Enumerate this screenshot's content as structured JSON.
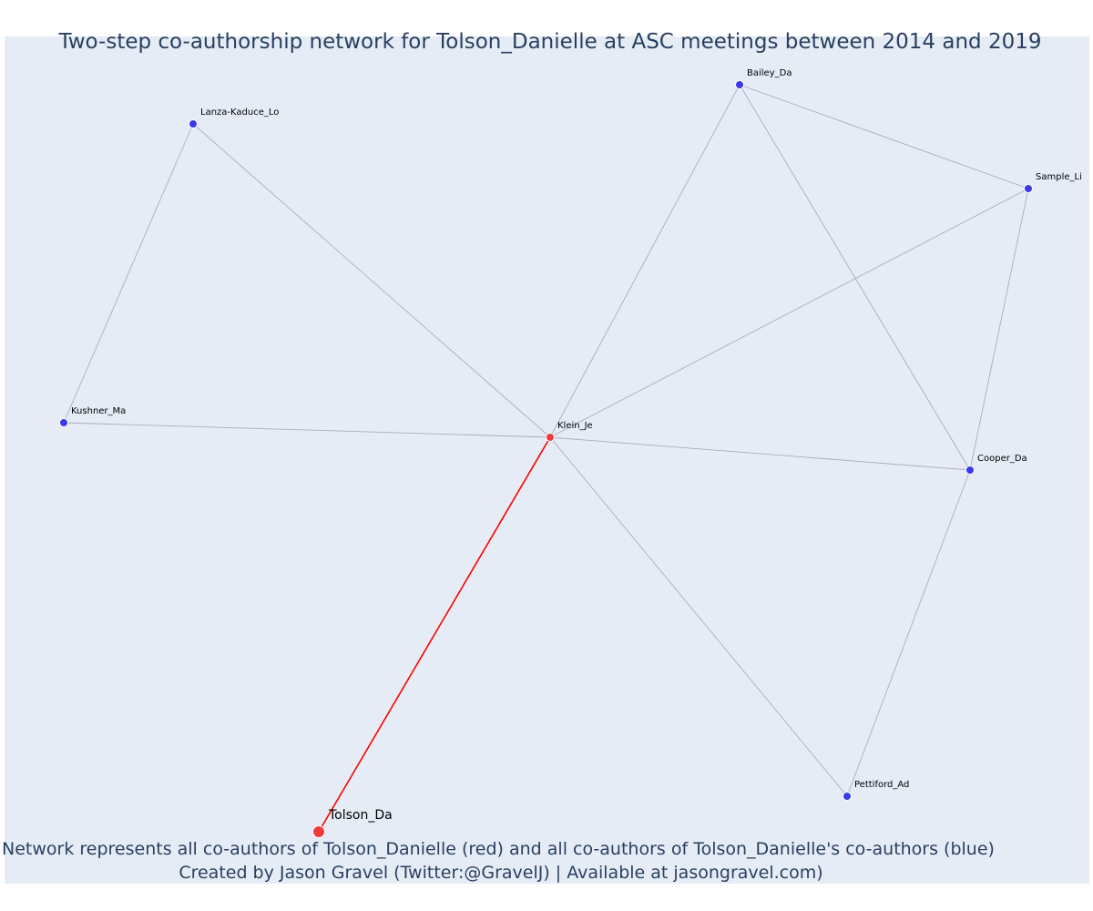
{
  "title": "Two-step co-authorship network for Tolson_Danielle at ASC meetings between 2014 and 2019",
  "caption": {
    "line1": "Network represents all co-authors of Tolson_Danielle (red) and all co-authors of Tolson_Danielle's co-authors (blue)",
    "line2": "Created by Jason Gravel (Twitter:@GravelJ) | Available at jasongravel.com)"
  },
  "colors": {
    "plot_background": "#e5ecf6",
    "focal_edge": "#ff0000",
    "edge": "#a9acc0",
    "coauthor_node": "#ef3b3b",
    "second_step_node": "#3a3ae8",
    "title": "#2a3f5f"
  },
  "nodes": [
    {
      "id": "Tolson_Da",
      "label": "Tolson_Da",
      "role": "focal"
    },
    {
      "id": "Klein_Je",
      "label": "Klein_Je",
      "role": "coauthor"
    },
    {
      "id": "Lanza-Kaduce_Lo",
      "label": "Lanza-Kaduce_Lo",
      "role": "second-step"
    },
    {
      "id": "Kushner_Ma",
      "label": "Kushner_Ma",
      "role": "second-step"
    },
    {
      "id": "Bailey_Da",
      "label": "Bailey_Da",
      "role": "second-step"
    },
    {
      "id": "Sample_Li",
      "label": "Sample_Li",
      "role": "second-step"
    },
    {
      "id": "Cooper_Da",
      "label": "Cooper_Da",
      "role": "second-step"
    },
    {
      "id": "Pettiford_Ad",
      "label": "Pettiford_Ad",
      "role": "second-step"
    }
  ],
  "edges": [
    {
      "source": "Tolson_Da",
      "target": "Klein_Je",
      "focal": true
    },
    {
      "source": "Klein_Je",
      "target": "Lanza-Kaduce_Lo",
      "focal": false
    },
    {
      "source": "Klein_Je",
      "target": "Kushner_Ma",
      "focal": false
    },
    {
      "source": "Klein_Je",
      "target": "Bailey_Da",
      "focal": false
    },
    {
      "source": "Klein_Je",
      "target": "Sample_Li",
      "focal": false
    },
    {
      "source": "Klein_Je",
      "target": "Cooper_Da",
      "focal": false
    },
    {
      "source": "Klein_Je",
      "target": "Pettiford_Ad",
      "focal": false
    },
    {
      "source": "Lanza-Kaduce_Lo",
      "target": "Kushner_Ma",
      "focal": false
    },
    {
      "source": "Bailey_Da",
      "target": "Sample_Li",
      "focal": false
    },
    {
      "source": "Bailey_Da",
      "target": "Cooper_Da",
      "focal": false
    },
    {
      "source": "Sample_Li",
      "target": "Cooper_Da",
      "focal": false
    },
    {
      "source": "Cooper_Da",
      "target": "Pettiford_Ad",
      "focal": false
    }
  ]
}
